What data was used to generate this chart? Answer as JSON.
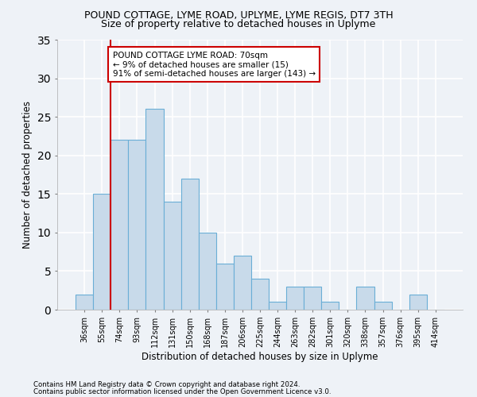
{
  "title1": "POUND COTTAGE, LYME ROAD, UPLYME, LYME REGIS, DT7 3TH",
  "title2": "Size of property relative to detached houses in Uplyme",
  "xlabel": "Distribution of detached houses by size in Uplyme",
  "ylabel": "Number of detached properties",
  "footer1": "Contains HM Land Registry data © Crown copyright and database right 2024.",
  "footer2": "Contains public sector information licensed under the Open Government Licence v3.0.",
  "categories": [
    "36sqm",
    "55sqm",
    "74sqm",
    "93sqm",
    "112sqm",
    "131sqm",
    "150sqm",
    "168sqm",
    "187sqm",
    "206sqm",
    "225sqm",
    "244sqm",
    "263sqm",
    "282sqm",
    "301sqm",
    "320sqm",
    "338sqm",
    "357sqm",
    "376sqm",
    "395sqm",
    "414sqm"
  ],
  "values": [
    2,
    15,
    22,
    22,
    26,
    14,
    17,
    10,
    6,
    7,
    4,
    1,
    3,
    3,
    1,
    0,
    3,
    1,
    0,
    2,
    0
  ],
  "bar_color": "#c8daea",
  "bar_edge_color": "#6aaed6",
  "bar_width": 1.0,
  "vline_color": "#cc0000",
  "annotation_text": "POUND COTTAGE LYME ROAD: 70sqm\n← 9% of detached houses are smaller (15)\n91% of semi-detached houses are larger (143) →",
  "annotation_box_color": "white",
  "annotation_box_edge_color": "#cc0000",
  "ylim": [
    0,
    35
  ],
  "yticks": [
    0,
    5,
    10,
    15,
    20,
    25,
    30,
    35
  ],
  "bg_color": "#eef2f7",
  "plot_bg_color": "#eef2f7",
  "grid_color": "white",
  "title1_fontsize": 9,
  "title2_fontsize": 9,
  "xlabel_fontsize": 8.5,
  "ylabel_fontsize": 8.5,
  "annotation_fontsize": 7.5,
  "tick_fontsize": 7
}
